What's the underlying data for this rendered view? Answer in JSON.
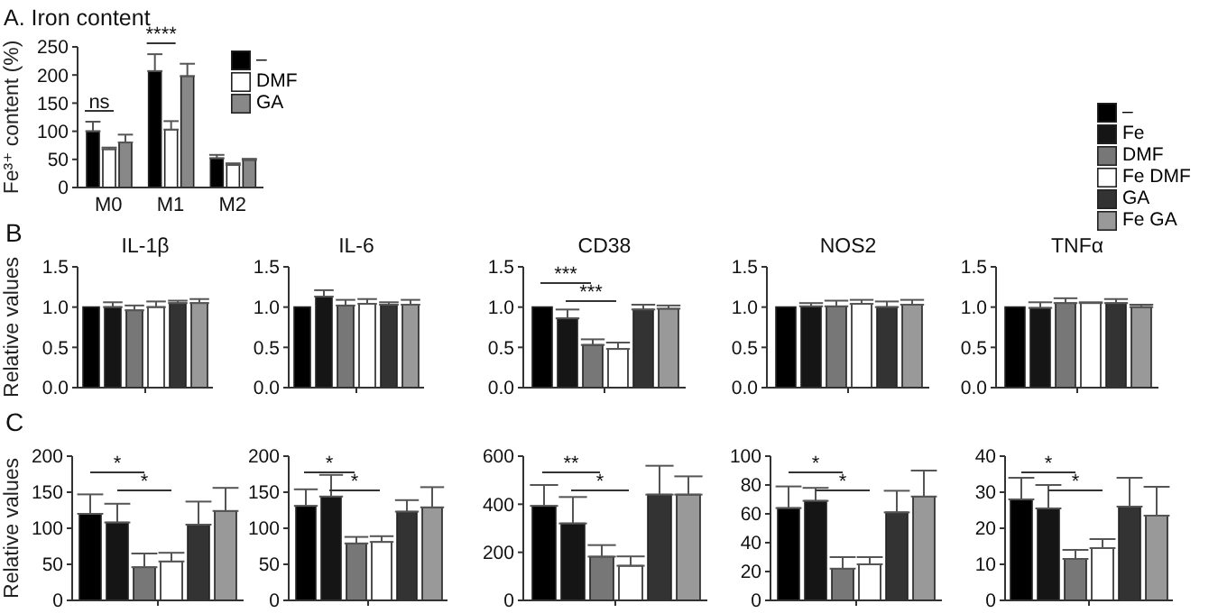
{
  "chart_data": [
    {
      "type": "bar",
      "title": "A. Iron content",
      "ylabel": "Fe³⁺ content (%)",
      "categories": [
        "M0",
        "M1",
        "M2"
      ],
      "series": [
        {
          "name": "–",
          "color": "#000000",
          "values": [
            100,
            207,
            52
          ],
          "errors": [
            17,
            30,
            6
          ]
        },
        {
          "name": "DMF",
          "color": "#ffffff",
          "values": [
            68,
            103,
            40
          ],
          "errors": [
            3,
            15,
            3
          ]
        },
        {
          "name": "GA",
          "color": "#888888",
          "values": [
            80,
            198,
            49
          ],
          "errors": [
            14,
            22,
            2
          ]
        }
      ],
      "ylim": [
        0,
        250
      ],
      "yticks": [
        0,
        50,
        100,
        150,
        200,
        250
      ],
      "legend": "top right",
      "annotations": [
        "ns",
        "****"
      ]
    },
    {
      "type": "bar",
      "title": "IL-1β",
      "ylabel": "Relative values",
      "categories": [
        null
      ],
      "series": [
        {
          "color": "#000000",
          "values": [
            1.0
          ],
          "errors": [
            null
          ]
        },
        {
          "color": "#151515",
          "values": [
            1.0
          ],
          "errors": [
            0.06
          ]
        },
        {
          "color": "#777777",
          "values": [
            0.96
          ],
          "errors": [
            0.06
          ]
        },
        {
          "color": "#ffffff",
          "values": [
            1.0
          ],
          "errors": [
            0.07
          ]
        },
        {
          "color": "#333333",
          "values": [
            1.05
          ],
          "errors": [
            0.03
          ]
        },
        {
          "color": "#999999",
          "values": [
            1.05
          ],
          "errors": [
            0.05
          ]
        }
      ],
      "ylim": [
        0,
        1.5
      ],
      "yticks": [
        {
          "value": 0,
          "label": "0.0"
        },
        {
          "value": 0.5,
          "label": "0.5"
        },
        {
          "value": 1,
          "label": "1.0"
        },
        {
          "value": 1.5,
          "label": "1.5"
        }
      ],
      "annotations": [
        "B"
      ]
    },
    {
      "type": "bar",
      "title": "IL-6",
      "categories": [
        null
      ],
      "series": [
        {
          "color": "#000000",
          "values": [
            1.0
          ],
          "errors": [
            null
          ]
        },
        {
          "color": "#151515",
          "values": [
            1.13
          ],
          "errors": [
            0.08
          ]
        },
        {
          "color": "#777777",
          "values": [
            1.02
          ],
          "errors": [
            0.07
          ]
        },
        {
          "color": "#ffffff",
          "values": [
            1.04
          ],
          "errors": [
            0.06
          ]
        },
        {
          "color": "#333333",
          "values": [
            1.03
          ],
          "errors": [
            0.03
          ]
        },
        {
          "color": "#999999",
          "values": [
            1.03
          ],
          "errors": [
            0.06
          ]
        }
      ],
      "ylim": [
        0,
        1.5
      ],
      "yticks": [
        {
          "value": 0,
          "label": "0.0"
        },
        {
          "value": 0.5,
          "label": "0.5"
        },
        {
          "value": 1,
          "label": "1.0"
        },
        {
          "value": 1.5,
          "label": "1.5"
        }
      ]
    },
    {
      "type": "bar",
      "title": "CD38",
      "categories": [
        null
      ],
      "series": [
        {
          "color": "#000000",
          "values": [
            1.0
          ],
          "errors": [
            null
          ]
        },
        {
          "color": "#151515",
          "values": [
            0.86
          ],
          "errors": [
            0.11
          ]
        },
        {
          "color": "#777777",
          "values": [
            0.53
          ],
          "errors": [
            0.07
          ]
        },
        {
          "color": "#ffffff",
          "values": [
            0.48
          ],
          "errors": [
            0.08
          ]
        },
        {
          "color": "#333333",
          "values": [
            0.97
          ],
          "errors": [
            0.06
          ]
        },
        {
          "color": "#999999",
          "values": [
            0.98
          ],
          "errors": [
            0.04
          ]
        }
      ],
      "ylim": [
        0,
        1.5
      ],
      "yticks": [
        {
          "value": 0,
          "label": "0.0"
        },
        {
          "value": 0.5,
          "label": "0.5"
        },
        {
          "value": 1,
          "label": "1.0"
        },
        {
          "value": 1.5,
          "label": "1.5"
        }
      ],
      "annotations": [
        "***",
        "***"
      ]
    },
    {
      "type": "bar",
      "title": "NOS2",
      "categories": [
        null
      ],
      "series": [
        {
          "color": "#000000",
          "values": [
            1.0
          ],
          "errors": [
            null
          ]
        },
        {
          "color": "#151515",
          "values": [
            1.01
          ],
          "errors": [
            0.04
          ]
        },
        {
          "color": "#777777",
          "values": [
            1.01
          ],
          "errors": [
            0.07
          ]
        },
        {
          "color": "#ffffff",
          "values": [
            1.04
          ],
          "errors": [
            0.05
          ]
        },
        {
          "color": "#333333",
          "values": [
            1.0
          ],
          "errors": [
            0.07
          ]
        },
        {
          "color": "#999999",
          "values": [
            1.03
          ],
          "errors": [
            0.06
          ]
        }
      ],
      "ylim": [
        0,
        1.5
      ],
      "yticks": [
        {
          "value": 0,
          "label": "0.0"
        },
        {
          "value": 0.5,
          "label": "0.5"
        },
        {
          "value": 1,
          "label": "1.0"
        },
        {
          "value": 1.5,
          "label": "1.5"
        }
      ]
    },
    {
      "type": "bar",
      "title": "TNFα",
      "categories": [
        null
      ],
      "series": [
        {
          "name": "–",
          "color": "#000000",
          "values": [
            1.0
          ],
          "errors": [
            null
          ]
        },
        {
          "name": "Fe",
          "color": "#151515",
          "values": [
            0.99
          ],
          "errors": [
            0.07
          ]
        },
        {
          "name": "DMF",
          "color": "#777777",
          "values": [
            1.05
          ],
          "errors": [
            0.06
          ]
        },
        {
          "name": "Fe DMF",
          "color": "#ffffff",
          "values": [
            1.05
          ],
          "errors": [
            0.01
          ]
        },
        {
          "name": "GA",
          "color": "#333333",
          "values": [
            1.05
          ],
          "errors": [
            0.05
          ]
        },
        {
          "name": "Fe GA",
          "color": "#999999",
          "values": [
            1.0
          ],
          "errors": [
            0.03
          ]
        }
      ],
      "ylim": [
        0,
        1.5
      ],
      "yticks": [
        {
          "value": 0,
          "label": "0.0"
        },
        {
          "value": 0.5,
          "label": "0.5"
        },
        {
          "value": 1,
          "label": "1.0"
        },
        {
          "value": 1.5,
          "label": "1.5"
        }
      ],
      "legend": "top right"
    },
    {
      "type": "bar",
      "ylabel": "Relative values",
      "categories": [
        null
      ],
      "series": [
        {
          "color": "#000000",
          "values": [
            120
          ],
          "errors": [
            27
          ]
        },
        {
          "color": "#151515",
          "values": [
            108
          ],
          "errors": [
            26
          ]
        },
        {
          "color": "#777777",
          "values": [
            46
          ],
          "errors": [
            19
          ]
        },
        {
          "color": "#ffffff",
          "values": [
            54
          ],
          "errors": [
            12
          ]
        },
        {
          "color": "#333333",
          "values": [
            105
          ],
          "errors": [
            32
          ]
        },
        {
          "color": "#999999",
          "values": [
            124
          ],
          "errors": [
            32
          ]
        }
      ],
      "ylim": [
        0,
        200
      ],
      "yticks": [
        0,
        50,
        100,
        150,
        200
      ],
      "annotations": [
        "C",
        "*",
        "*"
      ]
    },
    {
      "type": "bar",
      "categories": [
        null
      ],
      "series": [
        {
          "color": "#000000",
          "values": [
            131
          ],
          "errors": [
            23
          ]
        },
        {
          "color": "#151515",
          "values": [
            144
          ],
          "errors": [
            30
          ]
        },
        {
          "color": "#777777",
          "values": [
            79
          ],
          "errors": [
            9
          ]
        },
        {
          "color": "#ffffff",
          "values": [
            81
          ],
          "errors": [
            8
          ]
        },
        {
          "color": "#333333",
          "values": [
            123
          ],
          "errors": [
            16
          ]
        },
        {
          "color": "#999999",
          "values": [
            129
          ],
          "errors": [
            28
          ]
        }
      ],
      "ylim": [
        0,
        200
      ],
      "yticks": [
        0,
        50,
        100,
        150,
        200
      ],
      "annotations": [
        "*",
        "*"
      ]
    },
    {
      "type": "bar",
      "categories": [
        null
      ],
      "series": [
        {
          "color": "#000000",
          "values": [
            393
          ],
          "errors": [
            87
          ]
        },
        {
          "color": "#151515",
          "values": [
            320
          ],
          "errors": [
            110
          ]
        },
        {
          "color": "#777777",
          "values": [
            182
          ],
          "errors": [
            48
          ]
        },
        {
          "color": "#ffffff",
          "values": [
            144
          ],
          "errors": [
            39
          ]
        },
        {
          "color": "#333333",
          "values": [
            440
          ],
          "errors": [
            120
          ]
        },
        {
          "color": "#999999",
          "values": [
            440
          ],
          "errors": [
            76
          ]
        }
      ],
      "ylim": [
        0,
        600
      ],
      "yticks": [
        0,
        200,
        400,
        600
      ],
      "annotations": [
        "**",
        "*"
      ]
    },
    {
      "type": "bar",
      "categories": [
        null
      ],
      "series": [
        {
          "color": "#000000",
          "values": [
            64
          ],
          "errors": [
            15
          ]
        },
        {
          "color": "#151515",
          "values": [
            69
          ],
          "errors": [
            9
          ]
        },
        {
          "color": "#777777",
          "values": [
            22
          ],
          "errors": [
            8
          ]
        },
        {
          "color": "#ffffff",
          "values": [
            25
          ],
          "errors": [
            5
          ]
        },
        {
          "color": "#333333",
          "values": [
            61
          ],
          "errors": [
            15
          ]
        },
        {
          "color": "#999999",
          "values": [
            72
          ],
          "errors": [
            18
          ]
        }
      ],
      "ylim": [
        0,
        100
      ],
      "yticks": [
        0,
        20,
        40,
        60,
        80,
        100
      ],
      "annotations": [
        "*",
        "*"
      ]
    },
    {
      "type": "bar",
      "categories": [
        null
      ],
      "series": [
        {
          "color": "#000000",
          "values": [
            28
          ],
          "errors": [
            6
          ]
        },
        {
          "color": "#151515",
          "values": [
            25.5
          ],
          "errors": [
            6.5
          ]
        },
        {
          "color": "#777777",
          "values": [
            11.5
          ],
          "errors": [
            2.5
          ]
        },
        {
          "color": "#ffffff",
          "values": [
            14.5
          ],
          "errors": [
            2.5
          ]
        },
        {
          "color": "#333333",
          "values": [
            26
          ],
          "errors": [
            8
          ]
        },
        {
          "color": "#999999",
          "values": [
            23.5
          ],
          "errors": [
            8
          ]
        }
      ],
      "ylim": [
        0,
        40
      ],
      "yticks": [
        0,
        10,
        20,
        30,
        40
      ],
      "annotations": [
        "*",
        "*"
      ]
    }
  ]
}
